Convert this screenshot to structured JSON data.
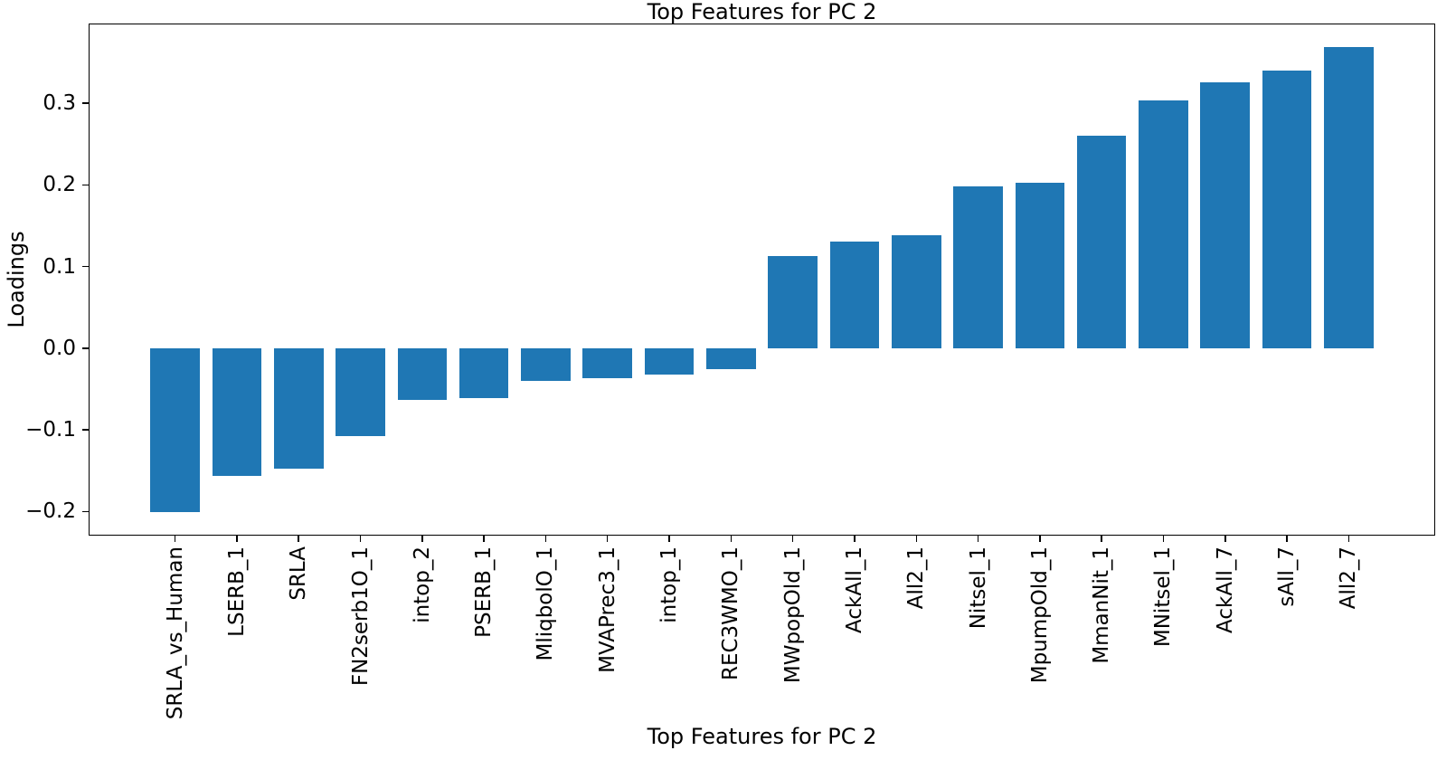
{
  "chart_data": {
    "type": "bar",
    "title": "Top Features for PC 2",
    "xlabel": "Top Features for PC 2",
    "ylabel": "Loadings",
    "categories": [
      "SRLA_vs_Human",
      "LSERB_1",
      "SRLA",
      "FN2serb1O_1",
      "intop_2",
      "PSERB_1",
      "MliqbolO_1",
      "MVAPrec3_1",
      "intop_1",
      "REC3WMO_1",
      "MWpopOld_1",
      "AckAll_1",
      "All2_1",
      "Nitsel_1",
      "MpumpOld_1",
      "MmanNit_1",
      "MNitsel_1",
      "AckAll_7",
      "sAll_7",
      "All2_7"
    ],
    "values": [
      -0.201,
      -0.156,
      -0.147,
      -0.108,
      -0.063,
      -0.061,
      -0.04,
      -0.037,
      -0.032,
      -0.026,
      0.113,
      0.131,
      0.138,
      0.198,
      0.203,
      0.26,
      0.303,
      0.325,
      0.34,
      0.369
    ],
    "yticks": [
      -0.2,
      -0.1,
      0.0,
      0.1,
      0.2,
      0.3
    ],
    "ylim": [
      -0.2295,
      0.3975
    ],
    "bar_color": "#1f77b4",
    "grid": false,
    "legend": null
  }
}
